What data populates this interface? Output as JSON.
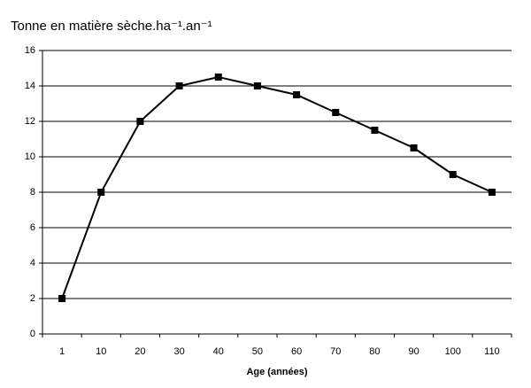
{
  "chart_data": {
    "type": "line",
    "title": "Tonne en matière sèche.ha⁻¹.an⁻¹",
    "x_label": "Age (années)",
    "categories": [
      "1",
      "10",
      "20",
      "30",
      "40",
      "50",
      "60",
      "70",
      "80",
      "90",
      "100",
      "110"
    ],
    "series": [
      {
        "color": "#000000",
        "values": [
          2,
          8,
          12,
          14,
          14.5,
          14,
          13.5,
          12.5,
          11.5,
          10.5,
          9,
          8
        ]
      }
    ],
    "ylim": [
      0,
      16
    ],
    "yticks": [
      0,
      2,
      4,
      6,
      8,
      10,
      12,
      14,
      16
    ],
    "grid": true
  }
}
